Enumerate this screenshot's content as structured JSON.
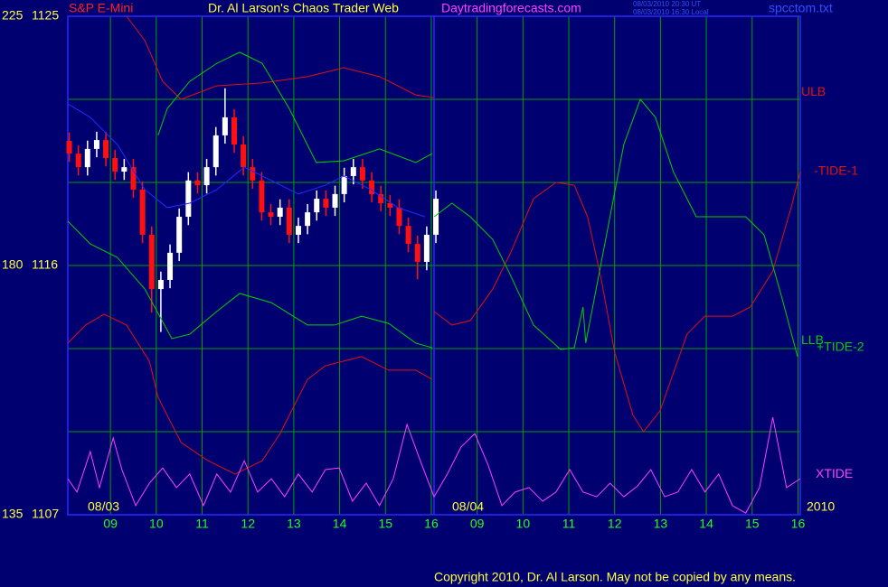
{
  "chart_data": {
    "type": "candlestick",
    "instrument": "S&P E-Mini",
    "title": "Dr. Al Larson's Chaos Trader Web",
    "site": "Daytradingforecasts.com",
    "timestamps": [
      "08/03/2010 20:30 UT",
      "08/03/2010 16:30 Local"
    ],
    "file": "spcctom.txt",
    "copyright": "Copyright 2010, Dr. Al Larson. May not be copied by any means.",
    "date_labels": [
      "08/03",
      "08/04",
      "2010"
    ],
    "xlim": [
      0.07,
      16.05
    ],
    "xticks": [
      {
        "value": 1,
        "label": "09"
      },
      {
        "value": 2,
        "label": "10"
      },
      {
        "value": 3,
        "label": "11"
      },
      {
        "value": 4,
        "label": "12"
      },
      {
        "value": 5,
        "label": "13"
      },
      {
        "value": 6,
        "label": "14"
      },
      {
        "value": 7,
        "label": "15"
      },
      {
        "value": 8,
        "label": "16"
      },
      {
        "value": 9,
        "label": "09"
      },
      {
        "value": 10,
        "label": "10"
      },
      {
        "value": 11,
        "label": "11"
      },
      {
        "value": 12,
        "label": "12"
      },
      {
        "value": 13,
        "label": "13"
      },
      {
        "value": 14,
        "label": "14"
      },
      {
        "value": 15,
        "label": "15"
      },
      {
        "value": 16,
        "label": "16"
      }
    ],
    "ylim": [
      1107,
      1125
    ],
    "yticks": [
      1107,
      1116,
      1125
    ],
    "ygrid": [
      1107,
      1110,
      1113,
      1116,
      1119,
      1122,
      1125
    ],
    "y2lim": [
      135,
      225
    ],
    "y2ticks": [
      135,
      180,
      225
    ],
    "grid": true,
    "grid_color": "#00a000",
    "candles": {
      "up_color": "#ffffff",
      "down_color": "#ff1010",
      "x": [
        0.1,
        0.3,
        0.5,
        0.7,
        0.9,
        1.1,
        1.3,
        1.5,
        1.7,
        1.9,
        2.1,
        2.3,
        2.5,
        2.7,
        2.9,
        3.1,
        3.3,
        3.5,
        3.7,
        3.9,
        4.1,
        4.3,
        4.5,
        4.7,
        4.9,
        5.1,
        5.3,
        5.5,
        5.7,
        5.9,
        6.1,
        6.3,
        6.5,
        6.7,
        6.9,
        7.1,
        7.3,
        7.5,
        7.7,
        7.9,
        8.1
      ],
      "open": [
        1120.5,
        1120.04,
        1119.55,
        1120.21,
        1120.53,
        1119.88,
        1119.39,
        1119.55,
        1118.74,
        1117.11,
        1115.15,
        1115.48,
        1116.46,
        1117.76,
        1119.07,
        1118.9,
        1119.55,
        1120.7,
        1121.35,
        1120.37,
        1119.55,
        1119.07,
        1117.92,
        1117.76,
        1118.09,
        1117.11,
        1117.43,
        1117.92,
        1118.41,
        1118.09,
        1118.58,
        1119.23,
        1119.55,
        1119.07,
        1118.58,
        1118.25,
        1118.09,
        1117.43,
        1116.78,
        1116.13,
        1117.11
      ],
      "high": [
        1120.8,
        1120.34,
        1120.51,
        1120.83,
        1120.83,
        1120.18,
        1119.85,
        1119.85,
        1119.04,
        1117.41,
        1115.78,
        1116.76,
        1118.06,
        1119.37,
        1119.37,
        1119.85,
        1121.0,
        1122.4,
        1121.65,
        1120.67,
        1119.85,
        1119.37,
        1118.22,
        1118.39,
        1118.39,
        1117.73,
        1118.22,
        1118.71,
        1118.71,
        1118.88,
        1119.53,
        1119.85,
        1119.85,
        1119.37,
        1118.88,
        1118.55,
        1118.39,
        1117.73,
        1117.08,
        1117.41,
        1118.71
      ],
      "low": [
        1119.74,
        1119.25,
        1119.25,
        1119.91,
        1119.58,
        1119.09,
        1119.09,
        1118.44,
        1116.81,
        1114.3,
        1113.6,
        1115.18,
        1116.16,
        1117.46,
        1118.6,
        1118.6,
        1119.25,
        1120.4,
        1120.07,
        1119.25,
        1118.77,
        1117.62,
        1117.46,
        1117.46,
        1116.81,
        1116.81,
        1117.13,
        1117.62,
        1117.79,
        1117.79,
        1118.28,
        1118.93,
        1118.77,
        1118.28,
        1117.95,
        1117.79,
        1117.13,
        1116.48,
        1115.5,
        1115.83,
        1116.81
      ],
      "close": [
        1120.04,
        1119.55,
        1120.21,
        1120.53,
        1119.88,
        1119.39,
        1119.55,
        1118.74,
        1117.11,
        1115.15,
        1115.48,
        1116.46,
        1117.76,
        1119.07,
        1118.9,
        1119.55,
        1120.7,
        1121.35,
        1120.37,
        1119.55,
        1119.07,
        1117.92,
        1117.76,
        1118.09,
        1117.11,
        1117.43,
        1117.92,
        1118.41,
        1118.09,
        1118.58,
        1119.23,
        1119.55,
        1119.07,
        1118.58,
        1118.25,
        1118.09,
        1117.43,
        1116.78,
        1116.13,
        1117.11,
        1118.41
      ]
    },
    "series": [
      {
        "name": "ULB",
        "color": "#e01010",
        "x": [
          1.35,
          1.75,
          2.14,
          2.54,
          3.32,
          4.31,
          5.3,
          6.09,
          6.87,
          7.66,
          8.06
        ],
        "values": [
          1125.0,
          1124.12,
          1122.65,
          1122.0,
          1122.49,
          1122.59,
          1122.82,
          1123.14,
          1122.82,
          1122.16,
          1122.06
        ]
      },
      {
        "color": "#00d000",
        "x": [
          2.04,
          2.24,
          2.73,
          3.32,
          3.82,
          4.31,
          4.9,
          5.49,
          6.09,
          6.87,
          7.66,
          8.02
        ],
        "values": [
          1120.7,
          1121.67,
          1122.65,
          1123.3,
          1123.7,
          1123.3,
          1121.67,
          1119.72,
          1119.78,
          1120.21,
          1119.72,
          1120.04
        ]
      },
      {
        "color": "#2828ff",
        "x": [
          0.07,
          0.56,
          1.15,
          1.75,
          2.24,
          2.73,
          3.32,
          3.92,
          4.51,
          5.1,
          5.69,
          6.09,
          6.68,
          7.27,
          7.86
        ],
        "values": [
          1121.84,
          1121.35,
          1120.37,
          1118.74,
          1118.09,
          1118.25,
          1118.74,
          1119.55,
          1119.07,
          1118.58,
          1118.9,
          1119.23,
          1118.74,
          1118.09,
          1117.76
        ]
      },
      {
        "name": "LLB",
        "color": "#00d000",
        "x": [
          0.07,
          0.56,
          1.15,
          1.75,
          2.34,
          2.73,
          3.32,
          3.82,
          4.51,
          5.3,
          5.89,
          6.48,
          7.07,
          7.66,
          8.02
        ],
        "values": [
          1117.6,
          1116.78,
          1116.29,
          1115.15,
          1113.36,
          1113.52,
          1114.34,
          1114.99,
          1114.66,
          1113.85,
          1113.85,
          1114.17,
          1113.91,
          1113.2,
          1113.03
        ]
      },
      {
        "color": "#e01010",
        "x": [
          0.07,
          0.46,
          0.86,
          1.35,
          1.85,
          2.04,
          2.54,
          3.13,
          3.72,
          4.31,
          4.7,
          5.3,
          5.69,
          6.48,
          7.07,
          7.66,
          8.02
        ],
        "values": [
          1113.2,
          1113.85,
          1114.24,
          1113.85,
          1112.54,
          1111.24,
          1109.61,
          1108.95,
          1108.47,
          1108.95,
          1109.93,
          1111.89,
          1112.38,
          1112.71,
          1112.22,
          1112.22,
          1111.89
        ]
      },
      {
        "name": "-TIDE-1",
        "color": "#e01010",
        "x": [
          8.06,
          8.45,
          8.85,
          9.34,
          9.73,
          10.23,
          10.72,
          11.12,
          11.41,
          11.71,
          12.0,
          12.4,
          12.63,
          12.99,
          13.58,
          13.97,
          14.57,
          14.96,
          15.45,
          15.85,
          16.05
        ],
        "values": [
          1114.34,
          1113.85,
          1114.01,
          1115.15,
          1116.46,
          1118.41,
          1119.0,
          1118.9,
          1117.76,
          1115.48,
          1112.87,
          1110.59,
          1110.0,
          1110.75,
          1113.52,
          1114.17,
          1114.17,
          1114.5,
          1115.8,
          1118.09,
          1119.39
        ]
      },
      {
        "name": "+TIDE-2",
        "color": "#00d000",
        "x": [
          8.06,
          8.45,
          8.85,
          9.34,
          9.73,
          10.23,
          10.82,
          11.12,
          11.31,
          11.37,
          11.71,
          12.2,
          12.56,
          12.89,
          13.28,
          13.78,
          14.37,
          14.86,
          15.26,
          15.65,
          15.99
        ],
        "values": [
          1117.76,
          1118.25,
          1117.76,
          1116.94,
          1115.64,
          1113.85,
          1112.97,
          1113.03,
          1114.5,
          1113.2,
          1116.13,
          1120.37,
          1122.0,
          1121.35,
          1119.39,
          1117.76,
          1117.76,
          1117.76,
          1117.11,
          1114.83,
          1112.71
        ]
      },
      {
        "name": "XTIDE",
        "color": "#ff40ff",
        "x": [
          0.07,
          0.27,
          0.56,
          0.76,
          1.06,
          1.25,
          1.55,
          1.85,
          2.14,
          2.44,
          2.73,
          3.03,
          3.32,
          3.62,
          3.92,
          4.21,
          4.51,
          4.8,
          5.1,
          5.4,
          5.69,
          5.99,
          6.28,
          6.58,
          6.87,
          7.17,
          7.47,
          7.76,
          8.06,
          8.35,
          8.65,
          8.95,
          9.24,
          9.54,
          9.83,
          10.13,
          10.43,
          10.72,
          11.02,
          11.31,
          11.61,
          11.9,
          12.2,
          12.5,
          12.79,
          13.09,
          13.38,
          13.68,
          13.97,
          14.27,
          14.57,
          14.86,
          15.16,
          15.45,
          15.75,
          16.05
        ],
        "values": [
          1108.3,
          1107.82,
          1109.28,
          1107.98,
          1109.77,
          1108.63,
          1107.33,
          1108.14,
          1108.69,
          1107.98,
          1108.47,
          1107.33,
          1108.47,
          1107.82,
          1108.95,
          1107.82,
          1108.3,
          1107.65,
          1108.47,
          1107.82,
          1108.63,
          1108.69,
          1107.49,
          1108.14,
          1107.33,
          1108.3,
          1110.26,
          1108.95,
          1107.65,
          1108.47,
          1109.45,
          1109.93,
          1108.79,
          1107.33,
          1107.82,
          1107.98,
          1107.49,
          1107.82,
          1108.63,
          1107.82,
          1107.65,
          1108.14,
          1107.65,
          1108.04,
          1108.63,
          1107.65,
          1107.82,
          1108.63,
          1107.82,
          1108.47,
          1107.33,
          1107.06,
          1107.98,
          1110.52,
          1107.98,
          1108.3
        ]
      }
    ]
  }
}
